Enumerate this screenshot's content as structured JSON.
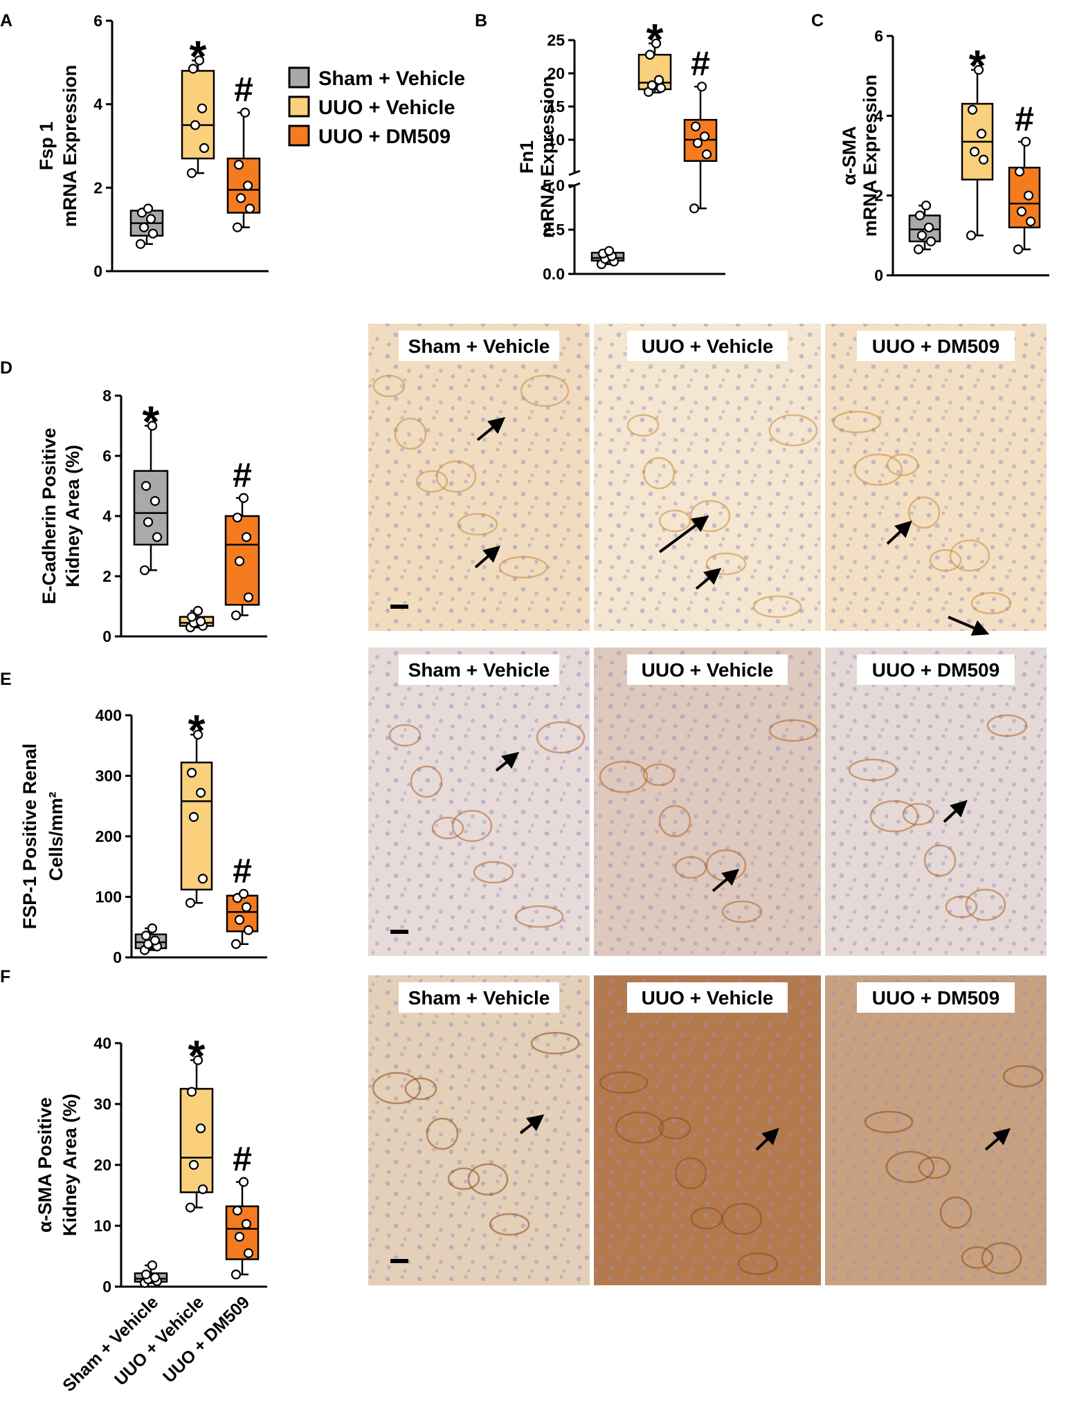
{
  "legend": [
    {
      "label": "Sham + Vehicle",
      "color": "#a9a9a9"
    },
    {
      "label": "UUO + Vehicle",
      "color": "#fbd07c"
    },
    {
      "label": "UUO + DM509",
      "color": "#f47b20"
    }
  ],
  "chart_data": [
    {
      "panel": "A",
      "type": "box",
      "ylabel_lines": [
        "Fsp 1",
        "mRNA Expression"
      ],
      "ylim": [
        0,
        6
      ],
      "yticks": [
        "0",
        "2",
        "4",
        "6"
      ],
      "categories": [
        "Sham + Vehicle",
        "UUO + Vehicle",
        "UUO + DM509"
      ],
      "series": [
        {
          "name": "Sham + Vehicle",
          "min": 0.65,
          "q1": 0.85,
          "median": 1.15,
          "q3": 1.45,
          "max": 1.5,
          "points": [
            0.65,
            0.9,
            1.05,
            1.25,
            1.4,
            1.5
          ]
        },
        {
          "name": "UUO + Vehicle",
          "min": 2.35,
          "q1": 2.7,
          "median": 3.5,
          "q3": 4.8,
          "max": 5.05,
          "points": [
            2.35,
            2.95,
            3.5,
            3.9,
            4.85,
            5.05
          ]
        },
        {
          "name": "UUO + DM509",
          "min": 1.05,
          "q1": 1.4,
          "median": 1.95,
          "q3": 2.7,
          "max": 3.8,
          "points": [
            1.05,
            1.5,
            1.75,
            2.05,
            2.55,
            3.8
          ]
        }
      ],
      "markers": [
        {
          "category": 1,
          "symbol": "*"
        },
        {
          "category": 2,
          "symbol": "#"
        }
      ]
    },
    {
      "panel": "B",
      "type": "box",
      "ylabel_lines": [
        "Fn1",
        "mRNA Expression"
      ],
      "axis_break": {
        "lower": [
          0,
          5
        ],
        "upper": [
          5,
          25
        ]
      },
      "yticks_lower": [
        "0.0",
        "2.5",
        "5.0"
      ],
      "yticks_upper": [
        "10",
        "15",
        "20",
        "25"
      ],
      "categories": [
        "Sham + Vehicle",
        "UUO + Vehicle",
        "UUO + DM509"
      ],
      "series": [
        {
          "name": "Sham + Vehicle",
          "min": 0.55,
          "q1": 0.75,
          "median": 0.9,
          "q3": 1.2,
          "max": 1.35,
          "points": [
            0.55,
            0.7,
            0.85,
            1.0,
            1.15,
            1.3
          ]
        },
        {
          "name": "UUO + Vehicle",
          "min": 17.1,
          "q1": 17.6,
          "median": 18.6,
          "q3": 22.8,
          "max": 24.5,
          "points": [
            17.2,
            17.8,
            18.2,
            19.0,
            22.8,
            24.5
          ]
        },
        {
          "name": "UUO + DM509",
          "min": 3.7,
          "q1": 6.8,
          "median": 10.0,
          "q3": 13.0,
          "max": 18.0,
          "points": [
            3.7,
            7.8,
            9.5,
            10.5,
            12.0,
            18.0
          ]
        }
      ],
      "markers": [
        {
          "category": 1,
          "symbol": "*"
        },
        {
          "category": 2,
          "symbol": "#"
        }
      ]
    },
    {
      "panel": "C",
      "type": "box",
      "ylabel_lines": [
        "α-SMA",
        "mRNA Expression"
      ],
      "ylim": [
        0,
        6
      ],
      "yticks": [
        "0",
        "2",
        "4",
        "6"
      ],
      "categories": [
        "Sham + Vehicle",
        "UUO + Vehicle",
        "UUO + DM509"
      ],
      "series": [
        {
          "name": "Sham + Vehicle",
          "min": 0.65,
          "q1": 0.85,
          "median": 1.15,
          "q3": 1.5,
          "max": 1.75,
          "points": [
            0.65,
            0.85,
            1.0,
            1.2,
            1.5,
            1.75
          ]
        },
        {
          "name": "UUO + Vehicle",
          "min": 1.0,
          "q1": 2.4,
          "median": 3.35,
          "q3": 4.3,
          "max": 5.15,
          "points": [
            1.0,
            2.9,
            3.1,
            3.55,
            4.15,
            5.15
          ]
        },
        {
          "name": "UUO + DM509",
          "min": 0.65,
          "q1": 1.2,
          "median": 1.8,
          "q3": 2.7,
          "max": 3.35,
          "points": [
            0.65,
            1.35,
            1.6,
            2.0,
            2.6,
            3.35
          ]
        }
      ],
      "markers": [
        {
          "category": 1,
          "symbol": "*"
        },
        {
          "category": 2,
          "symbol": "#"
        }
      ]
    },
    {
      "panel": "D",
      "type": "box",
      "ylabel_lines": [
        "E-Cadherin Positive",
        "Kidney Area (%)"
      ],
      "ylim": [
        0,
        8
      ],
      "yticks": [
        "0",
        "2",
        "4",
        "6",
        "8"
      ],
      "categories": [
        "Sham + Vehicle",
        "UUO + Vehicle",
        "UUO + DM509"
      ],
      "series": [
        {
          "name": "Sham + Vehicle",
          "min": 2.2,
          "q1": 3.05,
          "median": 4.1,
          "q3": 5.5,
          "max": 7.0,
          "points": [
            2.2,
            3.3,
            3.8,
            4.5,
            5.0,
            7.0
          ]
        },
        {
          "name": "UUO + Vehicle",
          "min": 0.3,
          "q1": 0.35,
          "median": 0.45,
          "q3": 0.65,
          "max": 0.85,
          "points": [
            0.3,
            0.35,
            0.45,
            0.5,
            0.65,
            0.85
          ]
        },
        {
          "name": "UUO + DM509",
          "min": 0.7,
          "q1": 1.05,
          "median": 3.05,
          "q3": 4.0,
          "max": 4.6,
          "points": [
            0.7,
            1.3,
            2.5,
            3.3,
            3.95,
            4.6
          ]
        }
      ],
      "markers": [
        {
          "category": 0,
          "symbol": "*"
        },
        {
          "category": 2,
          "symbol": "#"
        }
      ]
    },
    {
      "panel": "E",
      "type": "box",
      "ylabel_lines": [
        "FSP-1 Positive Renal",
        "Cells/mm²"
      ],
      "ylim": [
        0,
        400
      ],
      "yticks": [
        "0",
        "100",
        "200",
        "300",
        "400"
      ],
      "categories": [
        "Sham + Vehicle",
        "UUO + Vehicle",
        "UUO + DM509"
      ],
      "series": [
        {
          "name": "Sham + Vehicle",
          "min": 12,
          "q1": 15,
          "median": 25,
          "q3": 38,
          "max": 48,
          "points": [
            12,
            18,
            22,
            28,
            36,
            48
          ]
        },
        {
          "name": "UUO + Vehicle",
          "min": 90,
          "q1": 112,
          "median": 258,
          "q3": 322,
          "max": 368,
          "points": [
            90,
            130,
            232,
            272,
            305,
            368
          ]
        },
        {
          "name": "UUO + DM509",
          "min": 22,
          "q1": 43,
          "median": 75,
          "q3": 102,
          "max": 105,
          "points": [
            22,
            45,
            62,
            83,
            98,
            105
          ]
        }
      ],
      "markers": [
        {
          "category": 1,
          "symbol": "*"
        },
        {
          "category": 2,
          "symbol": "#"
        }
      ]
    },
    {
      "panel": "F",
      "type": "box",
      "ylabel_lines": [
        "α-SMA Positive",
        "Kidney Area (%)"
      ],
      "ylim": [
        0,
        40
      ],
      "yticks": [
        "0",
        "10",
        "20",
        "30",
        "40"
      ],
      "categories": [
        "Sham + Vehicle",
        "UUO + Vehicle",
        "UUO + DM509"
      ],
      "series": [
        {
          "name": "Sham + Vehicle",
          "min": 0.6,
          "q1": 0.8,
          "median": 1.3,
          "q3": 2.2,
          "max": 3.5,
          "points": [
            0.6,
            0.9,
            1.2,
            1.5,
            2.0,
            3.5
          ]
        },
        {
          "name": "UUO + Vehicle",
          "min": 13,
          "q1": 15.5,
          "median": 21.2,
          "q3": 32.5,
          "max": 37.2,
          "points": [
            13,
            16,
            20,
            26,
            32,
            37.2
          ]
        },
        {
          "name": "UUO + DM509",
          "min": 2,
          "q1": 4.5,
          "median": 9.5,
          "q3": 13.2,
          "max": 17.2,
          "points": [
            2,
            5.5,
            8.2,
            10.3,
            12.5,
            17.2
          ]
        }
      ],
      "markers": [
        {
          "category": 1,
          "symbol": "*"
        },
        {
          "category": 2,
          "symbol": "#"
        }
      ],
      "x_tick_labels": [
        "Sham + Vehicle",
        "UUO + Vehicle",
        "UUO + DM509"
      ]
    }
  ],
  "micrographs": [
    {
      "row": "D",
      "labels": [
        "Sham + Vehicle",
        "UUO + Vehicle",
        "UUO + DM509"
      ],
      "stain": "e-cadherin",
      "tints": [
        "#f2dcc0",
        "#f4e6d0",
        "#f3dfc4"
      ]
    },
    {
      "row": "E",
      "labels": [
        "Sham + Vehicle",
        "UUO + Vehicle",
        "UUO + DM509"
      ],
      "stain": "fsp-1",
      "tints": [
        "#e6dbd9",
        "#ddc9bd",
        "#e4d9d6"
      ]
    },
    {
      "row": "F",
      "labels": [
        "Sham + Vehicle",
        "UUO + Vehicle",
        "UUO + DM509"
      ],
      "stain": "alpha-sma",
      "tints": [
        "#e4cfb8",
        "#b37a4e",
        "#c8a180"
      ]
    }
  ],
  "arrow_icon": "arrow-icon",
  "scale_bar_icon": "scale-bar-icon"
}
